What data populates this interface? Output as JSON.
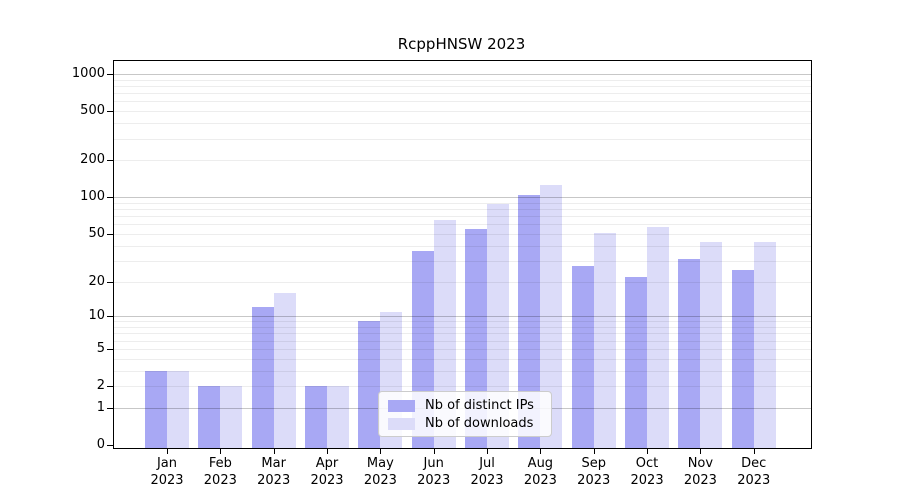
{
  "chart_data": {
    "type": "bar",
    "title": "RcppHNSW 2023",
    "categories": [
      "Jan",
      "Feb",
      "Mar",
      "Apr",
      "May",
      "Jun",
      "Jul",
      "Aug",
      "Sep",
      "Oct",
      "Nov",
      "Dec"
    ],
    "year_label": "2023",
    "series": [
      {
        "name": "Nb of distinct IPs",
        "color": "#a8a8f4",
        "values": [
          3,
          2,
          12,
          2,
          9,
          36,
          55,
          104,
          27,
          22,
          31,
          25
        ]
      },
      {
        "name": "Nb of downloads",
        "color": "#dcdcf9",
        "values": [
          3,
          2,
          16,
          2,
          11,
          65,
          88,
          125,
          51,
          57,
          43,
          43
        ]
      }
    ],
    "y_ticks": [
      0,
      1,
      2,
      5,
      10,
      20,
      50,
      100,
      200,
      500,
      1000
    ],
    "major_gridlines": [
      1,
      10,
      100,
      1000
    ],
    "minor_gridline_bases": [
      1,
      10,
      100
    ],
    "scale": "log1p",
    "ylim": [
      0,
      1280
    ],
    "grid": true,
    "legend_position": "inside-bottom-center",
    "axis_color": "#000000",
    "grid_major_color": "rgba(0,0,0,0.22)",
    "grid_minor_color": "rgba(0,0,0,0.07)",
    "background_color": "#ffffff"
  }
}
